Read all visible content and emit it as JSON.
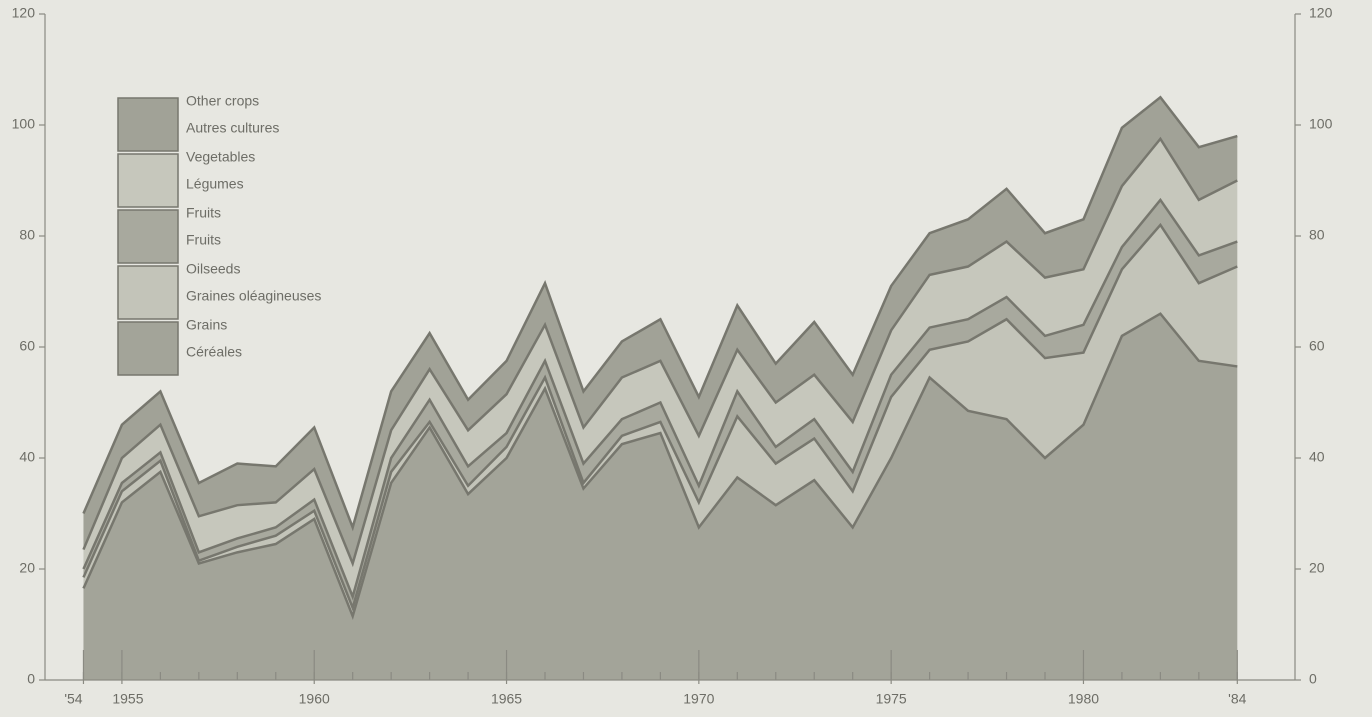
{
  "chart_data": {
    "type": "stacked-area",
    "x": [
      1954,
      1955,
      1956,
      1957,
      1958,
      1959,
      1960,
      1961,
      1962,
      1963,
      1964,
      1965,
      1966,
      1967,
      1968,
      1969,
      1970,
      1971,
      1972,
      1973,
      1974,
      1975,
      1976,
      1977,
      1978,
      1979,
      1980,
      1981,
      1982,
      1983,
      1984
    ],
    "series": [
      {
        "name": "Grains",
        "name_fr": "Céréales",
        "color": "#a3a499",
        "values": [
          16.5,
          32,
          37.5,
          21,
          23,
          24.5,
          29,
          11.5,
          35.5,
          45.5,
          33.5,
          40,
          52.5,
          34.5,
          42.5,
          44.5,
          27.5,
          36.5,
          31.5,
          36,
          27.5,
          40,
          54.5,
          48.5,
          47,
          40,
          46,
          62,
          66,
          57.5,
          56.5
        ]
      },
      {
        "name": "Oilseeds",
        "name_fr": "Graines oléagineuses",
        "color": "#c3c4b9",
        "values": [
          2,
          2,
          2,
          0.5,
          1,
          1.5,
          1.5,
          1.5,
          2,
          1,
          1.5,
          2,
          2,
          1,
          1.5,
          2,
          4.5,
          11,
          7.5,
          7.5,
          6.5,
          11,
          5,
          12.5,
          18,
          18,
          13,
          12,
          16,
          14,
          18
        ]
      },
      {
        "name": "Fruits",
        "name_fr": "Fruits",
        "color": "#a8a99e",
        "values": [
          1.5,
          1.5,
          1.5,
          1.5,
          1.5,
          1.5,
          2,
          2,
          2.5,
          4,
          3.5,
          2.5,
          3,
          3.5,
          3,
          3.5,
          3,
          4.5,
          3,
          3.5,
          3.5,
          4,
          4,
          4,
          4,
          4,
          5,
          4,
          4.5,
          5,
          4.5
        ]
      },
      {
        "name": "Vegetables",
        "name_fr": "Légumes",
        "color": "#c6c7bc",
        "values": [
          3.5,
          4.5,
          5,
          6.5,
          6,
          4.5,
          5.5,
          6,
          5,
          5.5,
          6.5,
          7,
          6.5,
          6.5,
          7.5,
          7.5,
          9,
          7.5,
          8,
          8,
          9,
          8,
          9.5,
          9.5,
          10,
          10.5,
          10,
          11,
          11,
          10,
          11
        ]
      },
      {
        "name": "Other crops",
        "name_fr": "Autres cultures",
        "color": "#a1a297",
        "values": [
          6.5,
          6,
          6,
          6,
          7.5,
          6.5,
          7.5,
          6.5,
          7,
          6.5,
          5.5,
          6,
          7.5,
          6.5,
          6.5,
          7.5,
          7,
          8,
          7,
          9.5,
          8.5,
          8,
          7.5,
          8.5,
          9.5,
          8,
          9,
          10.5,
          7.5,
          9.5,
          8
        ]
      }
    ],
    "xlim": [
      1953,
      1985.5
    ],
    "xticks": [
      {
        "value": 1954,
        "label": "'54"
      },
      1955,
      1960,
      1965,
      1970,
      1975,
      1980,
      {
        "value": 1984,
        "label": "'84"
      }
    ],
    "ylim": [
      0,
      120
    ],
    "yticks": [
      0,
      20,
      40,
      60,
      80,
      100,
      120
    ],
    "y2lim": [
      0,
      120
    ],
    "y2ticks": [
      0,
      20,
      40,
      60,
      80,
      100,
      120
    ],
    "line_color": "#77776e",
    "legend": "upper-left"
  }
}
